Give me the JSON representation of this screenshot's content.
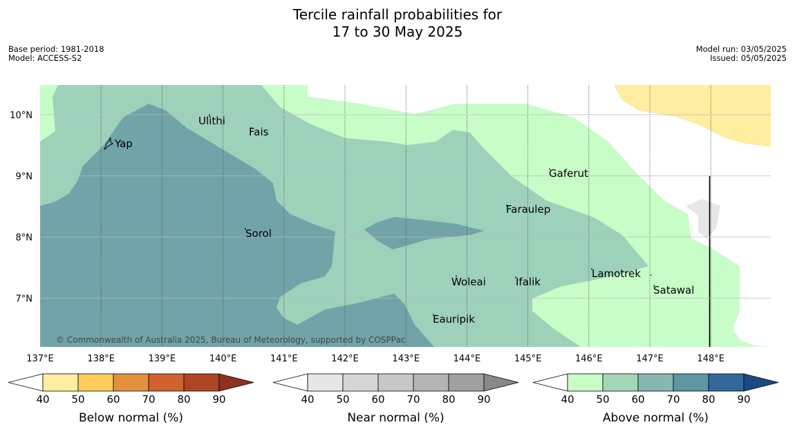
{
  "title": {
    "line1": "Tercile rainfall probabilities for",
    "line2": "17 to 30 May 2025"
  },
  "meta_left": {
    "base_period": "Base period: 1981-2018",
    "model": "Model: ACCESS-S2"
  },
  "meta_right": {
    "model_run": "Model run: 03/05/2025",
    "issued": "Issued: 05/05/2025"
  },
  "map": {
    "lon_labels": [
      "137°E",
      "138°E",
      "139°E",
      "140°E",
      "141°E",
      "142°E",
      "143°E",
      "144°E",
      "145°E",
      "146°E",
      "147°E",
      "148°E"
    ],
    "lat_labels": [
      "10°N",
      "9°N",
      "8°N",
      "7°N"
    ],
    "places": {
      "yap": "Yap",
      "ulithi": "Ulithi",
      "fais": "Fais",
      "gaferut": "Gaferut",
      "faraulep": "Faraulep",
      "sorol": "Sorol",
      "woleai": "Woleai",
      "ifalik": "Ifalik",
      "lamotrek": "Lamotrek",
      "satawal": "Satawal",
      "eauripik": "Eauripik"
    },
    "copyright": "© Commonwealth of Australia 2025, Bureau of Meteorology, supported by COSPPac"
  },
  "legends": [
    {
      "title": "Below normal (%)",
      "ticks": [
        "40",
        "50",
        "60",
        "70",
        "80",
        "90"
      ],
      "colors": [
        "#ffffff",
        "#ffeda0",
        "#fecc5c",
        "#e3913f",
        "#cf622e",
        "#ad4525",
        "#8e321f"
      ]
    },
    {
      "title": "Near normal (%)",
      "ticks": [
        "40",
        "50",
        "60",
        "70",
        "80",
        "90"
      ],
      "colors": [
        "#ffffff",
        "#e6e6e6",
        "#d6d6d6",
        "#c8c8c8",
        "#b4b4b4",
        "#a0a0a0",
        "#888888"
      ]
    },
    {
      "title": "Above normal (%)",
      "ticks": [
        "40",
        "50",
        "60",
        "70",
        "80",
        "90"
      ],
      "colors": [
        "#ffffff",
        "#c8fdc8",
        "#a2d8b8",
        "#86b8ad",
        "#5e96a2",
        "#33689a",
        "#1b4a80"
      ]
    }
  ]
}
